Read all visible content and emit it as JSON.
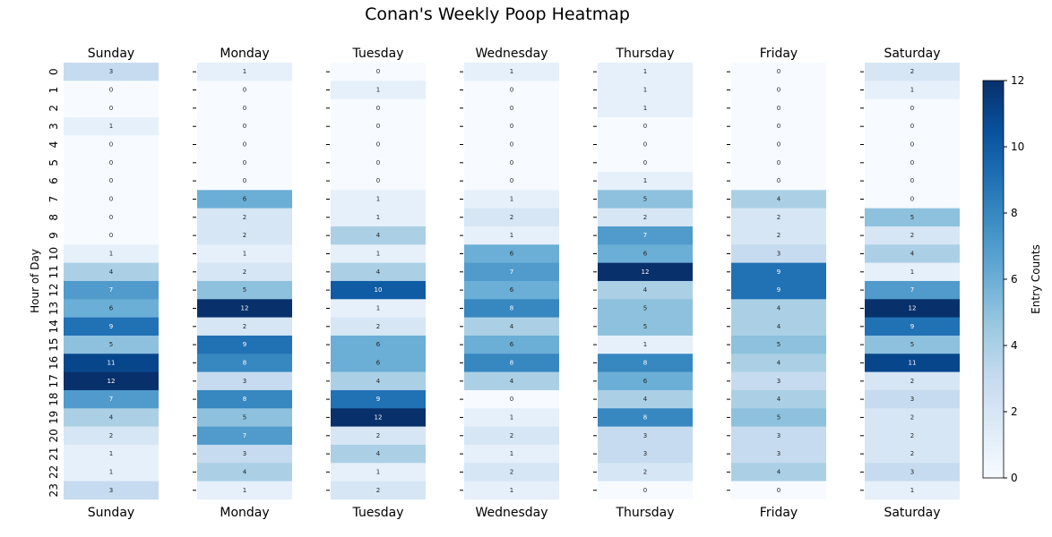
{
  "chart_data": {
    "type": "heatmap",
    "title": "Conan's Weekly Poop Heatmap",
    "ylabel": "Hour of Day",
    "colorbar_label": "Entry Counts",
    "colorbar_range": [
      0,
      12
    ],
    "colorbar_ticks": [
      "0",
      "2",
      "4",
      "6",
      "8",
      "10",
      "12"
    ],
    "colormap": "Blues",
    "hours": [
      "0",
      "1",
      "2",
      "3",
      "4",
      "5",
      "6",
      "7",
      "8",
      "9",
      "10",
      "11",
      "12",
      "13",
      "14",
      "15",
      "16",
      "17",
      "18",
      "19",
      "20",
      "21",
      "22",
      "23"
    ],
    "days": [
      "Sunday",
      "Monday",
      "Tuesday",
      "Wednesday",
      "Thursday",
      "Friday",
      "Saturday"
    ],
    "series": [
      {
        "day": "Sunday",
        "values": [
          3,
          0,
          0,
          1,
          0,
          0,
          0,
          0,
          0,
          0,
          1,
          4,
          7,
          6,
          9,
          5,
          11,
          12,
          7,
          4,
          2,
          1,
          1,
          3
        ]
      },
      {
        "day": "Monday",
        "values": [
          1,
          0,
          0,
          0,
          0,
          0,
          0,
          6,
          2,
          2,
          1,
          2,
          5,
          12,
          2,
          9,
          8,
          3,
          8,
          5,
          7,
          3,
          4,
          1
        ]
      },
      {
        "day": "Tuesday",
        "values": [
          0,
          1,
          0,
          0,
          0,
          0,
          0,
          1,
          1,
          4,
          1,
          4,
          10,
          1,
          2,
          6,
          6,
          4,
          9,
          12,
          2,
          4,
          1,
          2
        ]
      },
      {
        "day": "Wednesday",
        "values": [
          1,
          0,
          0,
          0,
          0,
          0,
          0,
          1,
          2,
          1,
          6,
          7,
          6,
          8,
          4,
          6,
          8,
          4,
          0,
          1,
          2,
          1,
          2,
          1
        ]
      },
      {
        "day": "Thursday",
        "values": [
          1,
          1,
          1,
          0,
          0,
          0,
          1,
          5,
          2,
          7,
          6,
          12,
          4,
          5,
          5,
          1,
          8,
          6,
          4,
          8,
          3,
          3,
          2,
          0
        ]
      },
      {
        "day": "Friday",
        "values": [
          0,
          0,
          0,
          0,
          0,
          0,
          0,
          4,
          2,
          2,
          3,
          9,
          9,
          4,
          4,
          5,
          4,
          3,
          4,
          5,
          3,
          3,
          4,
          0
        ]
      },
      {
        "day": "Saturday",
        "values": [
          2,
          1,
          0,
          0,
          0,
          0,
          0,
          0,
          5,
          2,
          4,
          1,
          7,
          12,
          9,
          5,
          11,
          2,
          3,
          2,
          2,
          2,
          3,
          1
        ]
      }
    ]
  }
}
